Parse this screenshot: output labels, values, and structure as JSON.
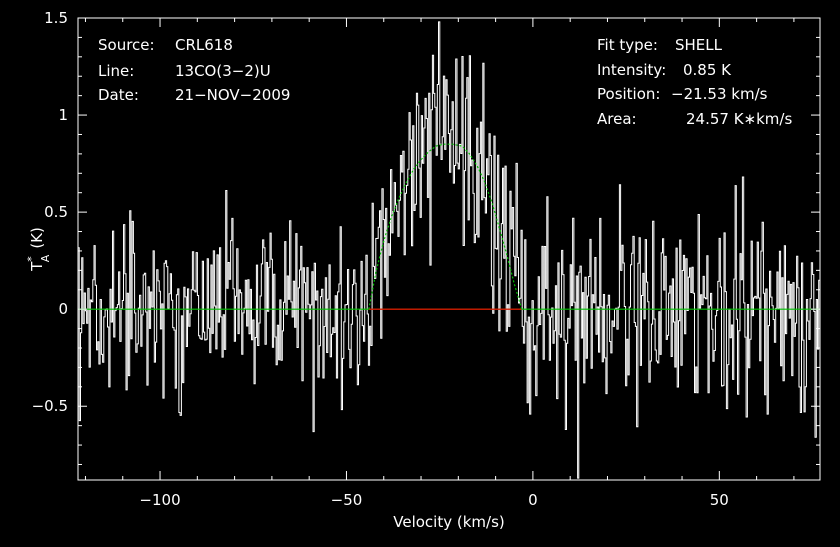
{
  "chart_data": {
    "type": "line",
    "xlabel": "Velocity (km/s)",
    "ylabel": "T",
    "ylabel_sup": "*",
    "ylabel_sub": "A",
    "ylabel_unit": "(K)",
    "xlim": [
      -122,
      77
    ],
    "ylim": [
      -0.88,
      1.5
    ],
    "x_ticks": [
      -100,
      -50,
      0,
      50
    ],
    "x_tick_labels": [
      "−100",
      "−50",
      "0",
      "50"
    ],
    "y_ticks": [
      -0.5,
      0,
      0.5,
      1,
      1.5
    ],
    "y_tick_labels": [
      "−0.5",
      "0",
      "0.5",
      "1",
      "1.5"
    ],
    "grid": false,
    "info_left": [
      {
        "key": "Source:",
        "value": "CRL618"
      },
      {
        "key": "Line:",
        "value": "13CO(3−2)U"
      },
      {
        "key": "Date:",
        "value": "21−NOV−2009"
      }
    ],
    "info_right": [
      {
        "key": "Fit type:",
        "value": "SHELL"
      },
      {
        "key": "Intensity:",
        "value": "0.85 K"
      },
      {
        "key": "Position:",
        "value": "−21.53 km/s"
      },
      {
        "key": "Area:",
        "value": "24.57 K∗km/s"
      }
    ],
    "fit": {
      "type": "shell",
      "peak_intensity_K": 0.85,
      "center_velocity_kms": -21.53,
      "area_K_kms": 24.57,
      "velocity_range_kms": [
        -44,
        -3
      ],
      "fit_model": {
        "x": [
          -44,
          -42,
          -40,
          -38,
          -36,
          -34,
          -32,
          -30,
          -28,
          -26,
          -24,
          -21.5,
          -19,
          -17,
          -15,
          -13,
          -11,
          -9,
          -7,
          -5,
          -3
        ],
        "y": [
          0.0,
          0.2,
          0.35,
          0.47,
          0.57,
          0.65,
          0.72,
          0.77,
          0.81,
          0.84,
          0.85,
          0.85,
          0.84,
          0.8,
          0.74,
          0.66,
          0.55,
          0.42,
          0.28,
          0.13,
          0.0
        ]
      }
    },
    "baseline_value": 0.0,
    "noise_rms_K": 0.25,
    "velocity_step_kms": 0.33,
    "colors": {
      "background": "#000000",
      "spectrum": "#ffffff",
      "fit": "#00c000",
      "fit_window": "#ff0000",
      "axes": "#ffffff"
    }
  }
}
